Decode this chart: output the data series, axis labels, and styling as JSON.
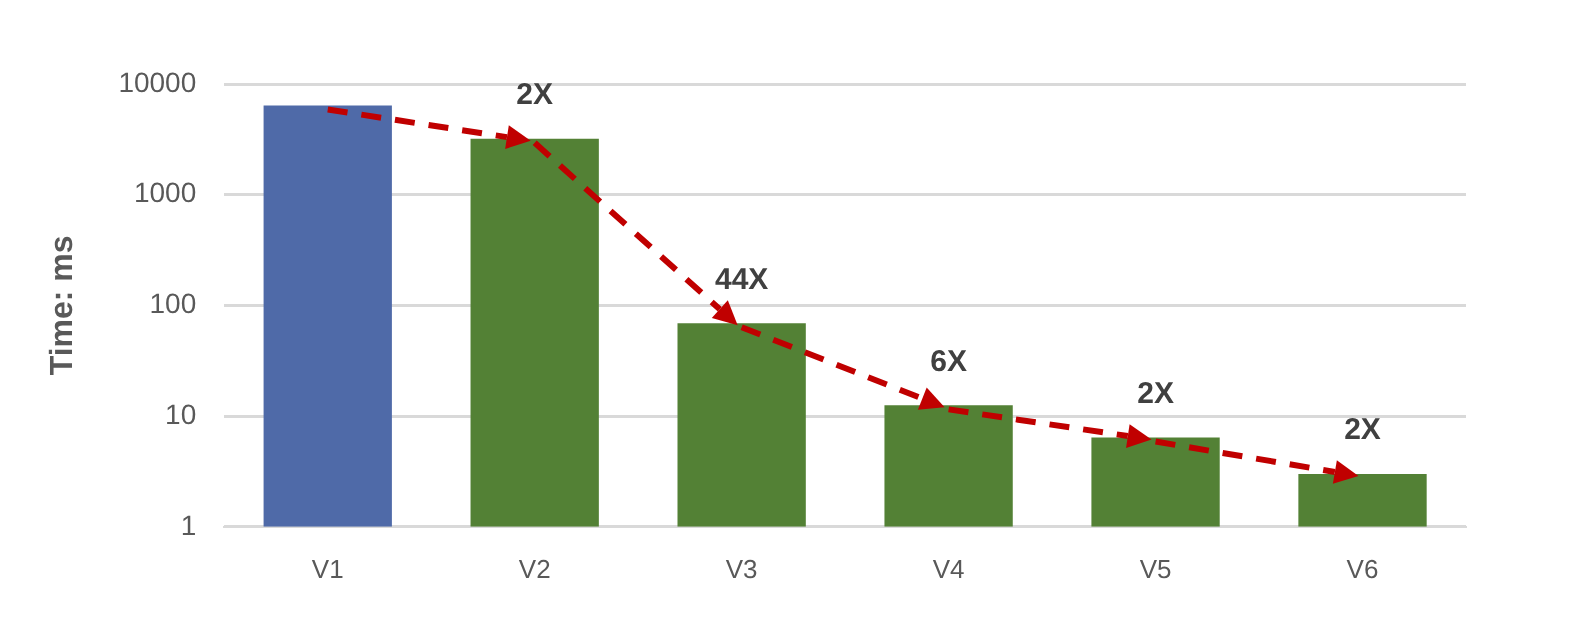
{
  "chart_data": {
    "type": "bar",
    "ylabel": "Time: ms",
    "categories": [
      "V1",
      "V2",
      "V3",
      "V4",
      "V5",
      "V6"
    ],
    "values": [
      6400,
      3200,
      69,
      12.5,
      6.4,
      3
    ],
    "colors": [
      "#4f6aa8",
      "#538135",
      "#538135",
      "#538135",
      "#538135",
      "#538135"
    ],
    "log": true,
    "ylim": [
      1,
      10000
    ],
    "yticks": [
      1,
      10,
      100,
      1000,
      10000
    ],
    "grid": "y",
    "annotations": [
      {
        "text": "2X",
        "x": "V2",
        "y": 3200
      },
      {
        "text": "44X",
        "x": "V3",
        "y": 69
      },
      {
        "text": "6X",
        "x": "V4",
        "y": 12.5
      },
      {
        "text": "2X",
        "x": "V5",
        "y": 6.4
      },
      {
        "text": "2X",
        "x": "V6",
        "y": 3
      }
    ]
  }
}
